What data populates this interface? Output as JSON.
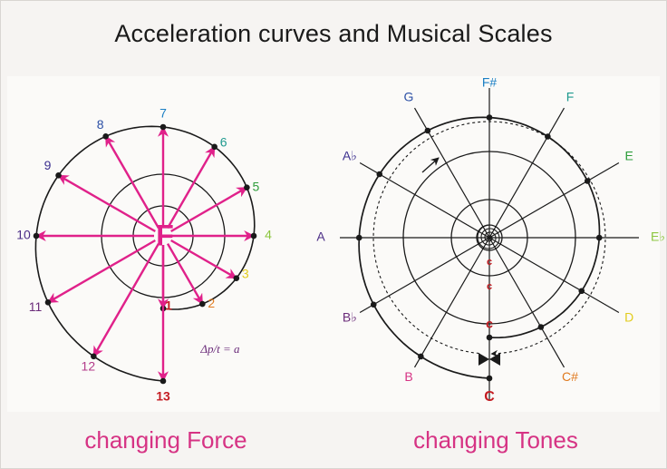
{
  "title": "Acceleration curves and Musical Scales",
  "left": {
    "caption": "changing Force",
    "center_letter": "F",
    "formula": "Δp/t = a",
    "points": [
      {
        "label": "1",
        "color": "#c41c22"
      },
      {
        "label": "2",
        "color": "#e07a1f"
      },
      {
        "label": "3",
        "color": "#e2cc1d"
      },
      {
        "label": "4",
        "color": "#8cc63f"
      },
      {
        "label": "5",
        "color": "#2e9d3b"
      },
      {
        "label": "6",
        "color": "#1f9a8f"
      },
      {
        "label": "7",
        "color": "#1b7fc4"
      },
      {
        "label": "8",
        "color": "#2b4fa5"
      },
      {
        "label": "9",
        "color": "#3b2f8f"
      },
      {
        "label": "10",
        "color": "#4b2d86"
      },
      {
        "label": "11",
        "color": "#6b2c7a"
      },
      {
        "label": "12",
        "color": "#b33b8a"
      },
      {
        "label": "13",
        "color": "#c41c22"
      }
    ]
  },
  "right": {
    "caption": "changing Tones",
    "bottom_letter": "C",
    "inner_letters": [
      "c",
      "c",
      "c"
    ],
    "notes": [
      {
        "label": "F#",
        "color": "#1b7fc4"
      },
      {
        "label": "F",
        "color": "#1f9a8f"
      },
      {
        "label": "E",
        "color": "#2e9d3b"
      },
      {
        "label": "E♭",
        "color": "#8cc63f"
      },
      {
        "label": "D",
        "color": "#e2cc1d"
      },
      {
        "label": "C#",
        "color": "#e07a1f"
      },
      {
        "label": "B",
        "color": "#d63384"
      },
      {
        "label": "B♭",
        "color": "#6b2c7a"
      },
      {
        "label": "A",
        "color": "#4b2d86"
      },
      {
        "label": "A♭",
        "color": "#3b2f8f"
      },
      {
        "label": "G",
        "color": "#2b4fa5"
      }
    ]
  },
  "colors": {
    "accent": "#e0218a",
    "line": "#1a1a1a"
  }
}
